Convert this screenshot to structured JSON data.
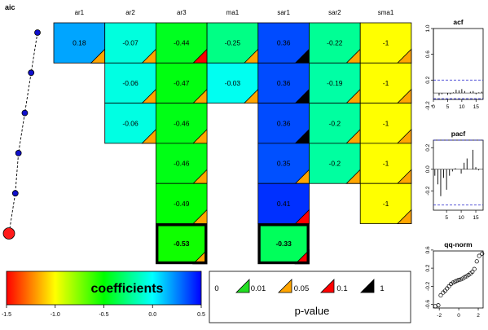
{
  "chart_data": [
    {
      "type": "table",
      "columns": [
        "ar1",
        "ar2",
        "ar3",
        "ma1",
        "sar1",
        "sar2",
        "sma1"
      ],
      "rows": [
        [
          0.18,
          -0.07,
          -0.44,
          -0.25,
          0.36,
          -0.22,
          -1
        ],
        [
          null,
          -0.06,
          -0.47,
          -0.03,
          0.36,
          -0.19,
          -1
        ],
        [
          null,
          -0.06,
          -0.46,
          null,
          0.36,
          -0.2,
          -1
        ],
        [
          null,
          null,
          -0.46,
          null,
          0.35,
          -0.2,
          -1
        ],
        [
          null,
          null,
          -0.49,
          null,
          0.41,
          null,
          -1
        ],
        [
          null,
          null,
          -0.53,
          null,
          -0.33,
          null,
          null
        ]
      ],
      "pvalue_class": [
        [
          1,
          1,
          2,
          1,
          3,
          1,
          1
        ],
        [
          null,
          1,
          1,
          1,
          3,
          1,
          1
        ],
        [
          null,
          1,
          1,
          null,
          3,
          1,
          1
        ],
        [
          null,
          null,
          1,
          null,
          1,
          1,
          1
        ],
        [
          null,
          null,
          1,
          null,
          2,
          null,
          1
        ],
        [
          null,
          null,
          1,
          null,
          2,
          null,
          null
        ]
      ],
      "selected_row": 5
    },
    {
      "type": "line",
      "title": "aic",
      "points": [
        {
          "aic": 0.87,
          "row": 0
        },
        {
          "aic": 0.81,
          "row": 1
        },
        {
          "aic": 0.75,
          "row": 2
        },
        {
          "aic": 0.69,
          "row": 3
        },
        {
          "aic": 0.66,
          "row": 4
        },
        {
          "aic": 0.6,
          "row": 5
        }
      ]
    },
    {
      "type": "bar",
      "title": "acf",
      "xlim": [
        0,
        17.5
      ],
      "ylim": [
        -0.1,
        1.0
      ],
      "xticks": [
        "0",
        "5",
        "10",
        "15"
      ],
      "yticks": [
        "-0.2",
        "0.2",
        "0.6",
        "1.0"
      ],
      "ytick_values": [
        -0.2,
        0.2,
        0.6,
        1.0
      ],
      "confidence_band": [
        -0.09,
        0.2
      ],
      "lags": [
        0,
        1,
        2,
        3,
        4,
        5,
        6,
        7,
        8,
        9,
        10,
        11,
        12,
        13,
        14,
        15,
        16,
        17
      ],
      "values": [
        1.0,
        0.0,
        -0.04,
        -0.02,
        0.0,
        -0.03,
        -0.02,
        0.01,
        0.05,
        0.04,
        0.06,
        0.03,
        0.0,
        0.02,
        0.03,
        -0.02,
        0.01,
        0.02
      ]
    },
    {
      "type": "bar",
      "title": "pacf",
      "xlim": [
        0.5,
        17.5
      ],
      "ylim": [
        -0.38,
        0.27
      ],
      "xticks": [
        "5",
        "10",
        "15"
      ],
      "yticks": [
        "-0.2",
        "0.0",
        "0.2"
      ],
      "ytick_values": [
        -0.2,
        0.0,
        0.2
      ],
      "confidence_band": [
        -0.33,
        0.27
      ],
      "lags": [
        1,
        2,
        3,
        4,
        5,
        6,
        7,
        8,
        9,
        10,
        11,
        12,
        13,
        14,
        15,
        16,
        17
      ],
      "values": [
        -0.06,
        -0.14,
        -0.25,
        -0.08,
        -0.19,
        -0.06,
        -0.02,
        0.01,
        0.0,
        -0.04,
        0.06,
        0.1,
        0.0,
        0.18,
        0.02,
        -0.01,
        0.0
      ]
    },
    {
      "type": "scatter",
      "title": "qq-norm",
      "xlim": [
        -2.6,
        2.5
      ],
      "ylim": [
        -0.68,
        0.58
      ],
      "xticks": [
        "-2",
        "0",
        "2"
      ],
      "yticks": [
        "-0.6",
        "-0.2",
        "0.2",
        "0.6"
      ],
      "ytick_values": [
        -0.6,
        -0.2,
        0.2,
        0.6
      ],
      "x": [
        -2.4,
        -2.1,
        -1.85,
        -1.6,
        -1.4,
        -1.2,
        -1.0,
        -0.8,
        -0.6,
        -0.4,
        -0.2,
        0.0,
        0.2,
        0.4,
        0.6,
        0.8,
        1.0,
        1.2,
        1.4,
        1.6,
        1.85,
        2.1,
        2.4
      ],
      "y": [
        -0.64,
        -0.62,
        -0.4,
        -0.34,
        -0.3,
        -0.25,
        -0.2,
        -0.15,
        -0.12,
        -0.1,
        -0.08,
        -0.06,
        -0.05,
        -0.03,
        0.0,
        0.02,
        0.05,
        0.08,
        0.12,
        0.18,
        0.35,
        0.47,
        0.52
      ]
    },
    {
      "type": "heatmap",
      "title": "coefficients",
      "range": [
        -1.5,
        0.5
      ],
      "ticks": [
        "-1.5",
        "-1.0",
        "-0.5",
        "0.0",
        "0.5"
      ],
      "tick_values": [
        -1.5,
        -1.0,
        -0.5,
        0.0,
        0.5
      ]
    },
    {
      "type": "table",
      "title": "p-value",
      "breaks": [
        "0",
        "0.01",
        "0.05",
        "0.1",
        "1"
      ],
      "colors": [
        "#22dd22",
        "#ffa500",
        "#ff0000",
        "#000000"
      ]
    }
  ]
}
